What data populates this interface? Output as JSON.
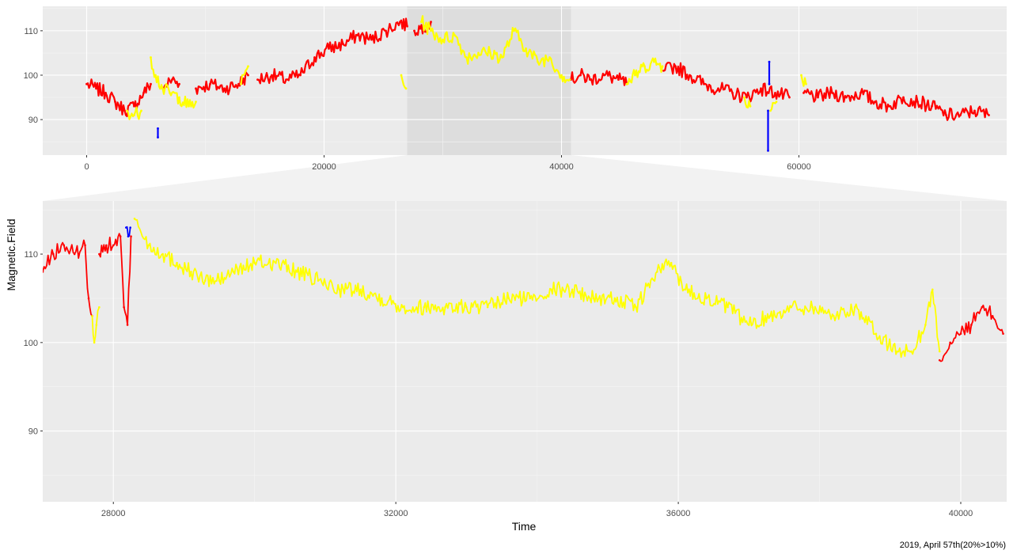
{
  "colors": {
    "panel_bg": "#ebebeb",
    "grid_major": "#ffffff",
    "grid_minor": "#f5f5f5",
    "highlight_band": "#dddddd",
    "zoom_funnel": "#f2f2f2",
    "tick_text": "#4d4d4d",
    "red": "#ff0000",
    "yellow": "#ffff00",
    "blue": "#0000ff"
  },
  "chart_data": [
    {
      "id": "overview",
      "type": "scatter",
      "xlabel": "",
      "ylabel": "",
      "xlim": [
        -3700,
        77500
      ],
      "ylim": [
        82,
        115.5
      ],
      "x_ticks": [
        0,
        20000,
        40000,
        60000
      ],
      "x_tick_labels": [
        "0",
        "20000",
        "40000",
        "60000"
      ],
      "y_ticks": [
        90,
        100,
        110
      ],
      "y_tick_labels": [
        "90",
        "100",
        "110"
      ],
      "highlight_range": [
        27000,
        40800
      ],
      "series": [
        {
          "color": "red",
          "segments": [
            {
              "x": [
                0,
                800,
                1600,
                2400,
                3200,
                4000,
                4800,
                5400
              ],
              "y": [
                98,
                97,
                96,
                94,
                92,
                93,
                96,
                98
              ]
            },
            {
              "x": [
                6400,
                7200,
                7800
              ],
              "y": [
                97,
                99,
                98
              ]
            },
            {
              "x": [
                9200,
                10400,
                11600,
                12800,
                13600
              ],
              "y": [
                97,
                98,
                97,
                98,
                100
              ]
            },
            {
              "x": [
                14400,
                15600,
                16800,
                18000,
                19200,
                20400,
                21600,
                22800,
                24000,
                25200,
                26400,
                27000
              ],
              "y": [
                99,
                100,
                99,
                100,
                104,
                106,
                107,
                109,
                108,
                110,
                112,
                111
              ]
            },
            {
              "x": [
                27600,
                28400,
                29000
              ],
              "y": [
                110,
                111,
                112
              ]
            },
            {
              "x": [
                40800,
                41600,
                42400,
                43600,
                44800,
                45500
              ],
              "y": [
                99,
                100,
                99,
                100,
                99,
                98
              ]
            },
            {
              "x": [
                48600,
                49600,
                50800,
                52000,
                53200,
                54400,
                55600,
                56800,
                58000,
                59200
              ],
              "y": [
                101,
                102,
                100,
                98,
                97,
                96,
                95,
                97,
                96,
                95
              ]
            },
            {
              "x": [
                60400,
                61600,
                62800,
                64000,
                65200,
                66400,
                67600,
                68800,
                70000,
                71200,
                72400,
                73600,
                74800,
                76000
              ],
              "y": [
                96,
                95,
                96,
                95,
                96,
                94,
                93,
                95,
                94,
                93,
                91,
                91,
                92,
                91
              ]
            }
          ]
        },
        {
          "color": "yellow",
          "segments": [
            {
              "x": [
                3400,
                4000,
                4600
              ],
              "y": [
                92,
                91,
                92
              ]
            },
            {
              "x": [
                5400,
                5800,
                6400,
                7000,
                7800,
                8600,
                9200
              ],
              "y": [
                104,
                100,
                97,
                96,
                95,
                93,
                94
              ]
            },
            {
              "x": [
                13000,
                13600
              ],
              "y": [
                98,
                102
              ]
            },
            {
              "x": [
                26500,
                26900
              ],
              "y": [
                100,
                97
              ]
            },
            {
              "x": [
                28200,
                29000,
                30000,
                31000,
                32000,
                33000,
                34000,
                35000,
                36000,
                37000,
                38000,
                39000,
                40000,
                40700
              ],
              "y": [
                112,
                110,
                108,
                109,
                104,
                105,
                105,
                104,
                110,
                106,
                103,
                104,
                100,
                99
              ]
            },
            {
              "x": [
                45500,
                46200,
                47000,
                47800,
                48500
              ],
              "y": [
                98,
                100,
                102,
                103,
                102
              ]
            },
            {
              "x": [
                55400,
                55900
              ],
              "y": [
                95,
                93
              ]
            },
            {
              "x": [
                57600,
                58100
              ],
              "y": [
                92,
                94
              ]
            },
            {
              "x": [
                60200,
                60600
              ],
              "y": [
                100,
                98
              ]
            }
          ]
        },
        {
          "color": "blue",
          "segments": [
            {
              "x": [
                6000,
                6000
              ],
              "y": [
                88,
                86
              ]
            },
            {
              "x": [
                57400,
                57400
              ],
              "y": [
                92,
                83
              ]
            },
            {
              "x": [
                57500,
                57500
              ],
              "y": [
                103,
                98
              ]
            }
          ]
        }
      ]
    },
    {
      "id": "detail",
      "type": "scatter",
      "xlabel": "Time",
      "ylabel": "Magnetic.Field",
      "xlim": [
        27000,
        40650
      ],
      "ylim": [
        82,
        116
      ],
      "x_ticks": [
        28000,
        32000,
        36000,
        40000
      ],
      "x_tick_labels": [
        "28000",
        "32000",
        "36000",
        "40000"
      ],
      "y_ticks": [
        90,
        100,
        110
      ],
      "y_tick_labels": [
        "90",
        "100",
        "110"
      ],
      "series": [
        {
          "color": "red",
          "segments": [
            {
              "x": [
                27000,
                27150,
                27300,
                27450,
                27600,
                27650,
                27700
              ],
              "y": [
                108,
                110,
                111,
                110,
                111,
                105,
                103
              ]
            },
            {
              "x": [
                27800,
                27900,
                28000,
                28100,
                28150,
                28200,
                28250
              ],
              "y": [
                110,
                111,
                111,
                112,
                104,
                102,
                112
              ]
            },
            {
              "x": [
                39700,
                39850,
                40000,
                40150,
                40300,
                40450,
                40600
              ],
              "y": [
                98,
                100,
                101,
                102,
                104,
                103,
                101
              ]
            }
          ]
        },
        {
          "color": "yellow",
          "segments": [
            {
              "x": [
                27700,
                27730,
                27760,
                27800
              ],
              "y": [
                103,
                100,
                102,
                104
              ]
            },
            {
              "x": [
                28300,
                28500,
                28700,
                28900,
                29100,
                29300,
                29500,
                29700,
                30000,
                30300,
                30600,
                30900,
                31200,
                31500,
                31800,
                32100,
                32400,
                32700,
                33000,
                33300,
                33600,
                33900,
                34200,
                34500,
                34800,
                35100,
                35400,
                35700,
                35900,
                36100,
                36400,
                36700,
                37000,
                37300,
                37600,
                37900,
                38200,
                38500,
                38800,
                39100,
                39300,
                39500,
                39600,
                39700
              ],
              "y": [
                114,
                111,
                110,
                109,
                108,
                107,
                107,
                108,
                109,
                109,
                108,
                107,
                106,
                106,
                105,
                104,
                104,
                104,
                104,
                104,
                105,
                105,
                106,
                106,
                105,
                105,
                104,
                108,
                109,
                106,
                105,
                104,
                102,
                103,
                104,
                104,
                103,
                104,
                101,
                99,
                99,
                102,
                106,
                99
              ]
            }
          ]
        },
        {
          "color": "blue",
          "segments": [
            {
              "x": [
                28180,
                28210,
                28240
              ],
              "y": [
                113,
                112,
                113
              ]
            }
          ]
        }
      ]
    }
  ],
  "caption": "2019, April 57th(20%>10%)"
}
